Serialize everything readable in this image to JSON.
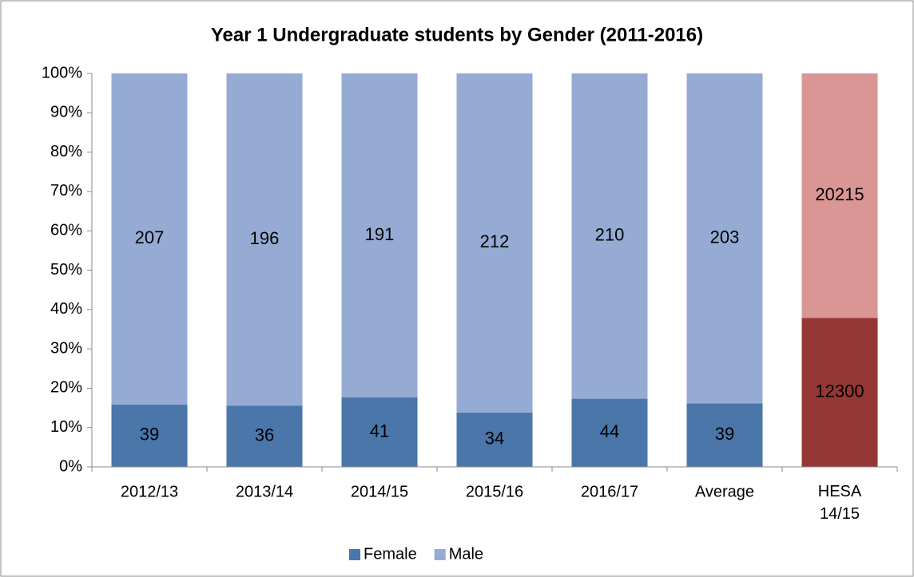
{
  "chart_data": {
    "type": "bar",
    "stacking": "percent",
    "title": "Year 1 Undergraduate students by Gender (2011-2016)",
    "categories": [
      "2012/13",
      "2013/14",
      "2014/15",
      "2015/16",
      "2016/17",
      "Average",
      "HESA 14/15"
    ],
    "series": [
      {
        "name": "Female",
        "color": "#4a76aa",
        "colors": [
          "#4a76aa",
          "#4a76aa",
          "#4a76aa",
          "#4a76aa",
          "#4a76aa",
          "#4a76aa",
          "#953735"
        ],
        "values": [
          39,
          36,
          41,
          34,
          44,
          39,
          12300
        ]
      },
      {
        "name": "Male",
        "color": "#95abd3",
        "colors": [
          "#95abd3",
          "#95abd3",
          "#95abd3",
          "#95abd3",
          "#95abd3",
          "#95abd3",
          "#d99694"
        ],
        "values": [
          207,
          196,
          191,
          212,
          210,
          203,
          20215
        ]
      }
    ],
    "ylim": [
      0,
      100
    ],
    "yticks": [
      {
        "value": 0,
        "label": "0%"
      },
      {
        "value": 10,
        "label": "10%"
      },
      {
        "value": 20,
        "label": "20%"
      },
      {
        "value": 30,
        "label": "30%"
      },
      {
        "value": 40,
        "label": "40%"
      },
      {
        "value": 50,
        "label": "50%"
      },
      {
        "value": 60,
        "label": "60%"
      },
      {
        "value": 70,
        "label": "70%"
      },
      {
        "value": 80,
        "label": "80%"
      },
      {
        "value": 90,
        "label": "90%"
      },
      {
        "value": 100,
        "label": "100%"
      }
    ],
    "grid": false,
    "legend": "bottom"
  }
}
